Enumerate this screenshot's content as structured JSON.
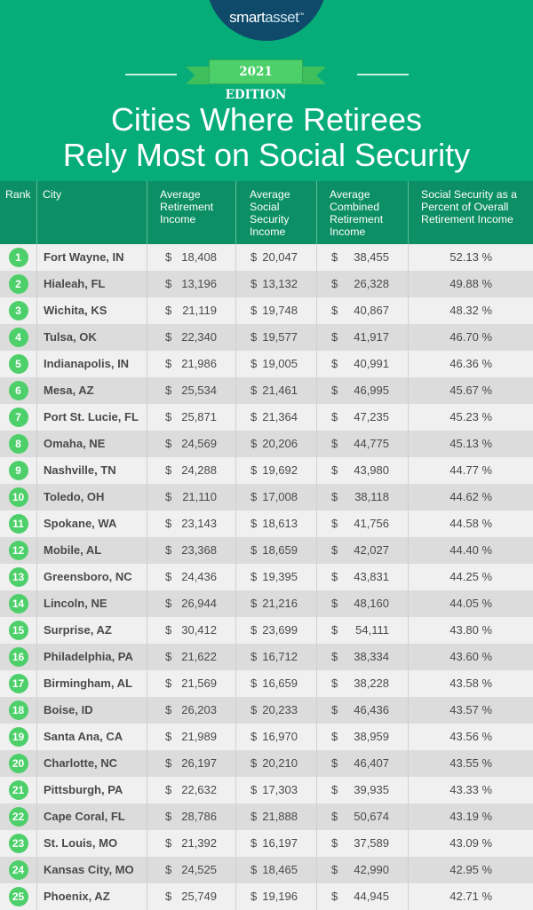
{
  "brand": {
    "logo_prefix": "smart",
    "logo_suffix": "asset",
    "logo_mark": "™",
    "edition": "2021 EDITION",
    "title_line1": "Cities Where Retirees",
    "title_line2": "Rely Most on Social Security",
    "colors": {
      "header": "#07ad78",
      "table_header": "#0c8f64",
      "logo": "#0f4a6a",
      "badge": "#4dcf6a"
    }
  },
  "chart_data": {
    "type": "table",
    "title": "Cities Where Retirees Rely Most on Social Security",
    "columns": [
      "Rank",
      "City",
      "Average Retirement Income",
      "Average Social Security Income",
      "Average Combined Retirement Income",
      "Social Security as a Percent of Overall Retirement Income"
    ],
    "currency_symbol": "$",
    "percent_symbol": "%",
    "rows": [
      [
        1,
        "Fort Wayne, IN",
        "18,408",
        "20,047",
        "38,455",
        "52.13"
      ],
      [
        2,
        "Hialeah, FL",
        "13,196",
        "13,132",
        "26,328",
        "49.88"
      ],
      [
        3,
        "Wichita, KS",
        "21,119",
        "19,748",
        "40,867",
        "48.32"
      ],
      [
        4,
        "Tulsa, OK",
        "22,340",
        "19,577",
        "41,917",
        "46.70"
      ],
      [
        5,
        "Indianapolis, IN",
        "21,986",
        "19,005",
        "40,991",
        "46.36"
      ],
      [
        6,
        "Mesa, AZ",
        "25,534",
        "21,461",
        "46,995",
        "45.67"
      ],
      [
        7,
        "Port St. Lucie, FL",
        "25,871",
        "21,364",
        "47,235",
        "45.23"
      ],
      [
        8,
        "Omaha, NE",
        "24,569",
        "20,206",
        "44,775",
        "45.13"
      ],
      [
        9,
        "Nashville, TN",
        "24,288",
        "19,692",
        "43,980",
        "44.77"
      ],
      [
        10,
        "Toledo, OH",
        "21,110",
        "17,008",
        "38,118",
        "44.62"
      ],
      [
        11,
        "Spokane, WA",
        "23,143",
        "18,613",
        "41,756",
        "44.58"
      ],
      [
        12,
        "Mobile, AL",
        "23,368",
        "18,659",
        "42,027",
        "44.40"
      ],
      [
        13,
        "Greensboro, NC",
        "24,436",
        "19,395",
        "43,831",
        "44.25"
      ],
      [
        14,
        "Lincoln, NE",
        "26,944",
        "21,216",
        "48,160",
        "44.05"
      ],
      [
        15,
        "Surprise, AZ",
        "30,412",
        "23,699",
        "54,111",
        "43.80"
      ],
      [
        16,
        "Philadelphia, PA",
        "21,622",
        "16,712",
        "38,334",
        "43.60"
      ],
      [
        17,
        "Birmingham, AL",
        "21,569",
        "16,659",
        "38,228",
        "43.58"
      ],
      [
        18,
        "Boise, ID",
        "26,203",
        "20,233",
        "46,436",
        "43.57"
      ],
      [
        19,
        "Santa Ana, CA",
        "21,989",
        "16,970",
        "38,959",
        "43.56"
      ],
      [
        20,
        "Charlotte, NC",
        "26,197",
        "20,210",
        "46,407",
        "43.55"
      ],
      [
        21,
        "Pittsburgh, PA",
        "22,632",
        "17,303",
        "39,935",
        "43.33"
      ],
      [
        22,
        "Cape Coral, FL",
        "28,786",
        "21,888",
        "50,674",
        "43.19"
      ],
      [
        23,
        "St. Louis, MO",
        "21,392",
        "16,197",
        "37,589",
        "43.09"
      ],
      [
        24,
        "Kansas City, MO",
        "24,525",
        "18,465",
        "42,990",
        "42.95"
      ],
      [
        25,
        "Phoenix, AZ",
        "25,749",
        "19,196",
        "44,945",
        "42.71"
      ]
    ]
  }
}
